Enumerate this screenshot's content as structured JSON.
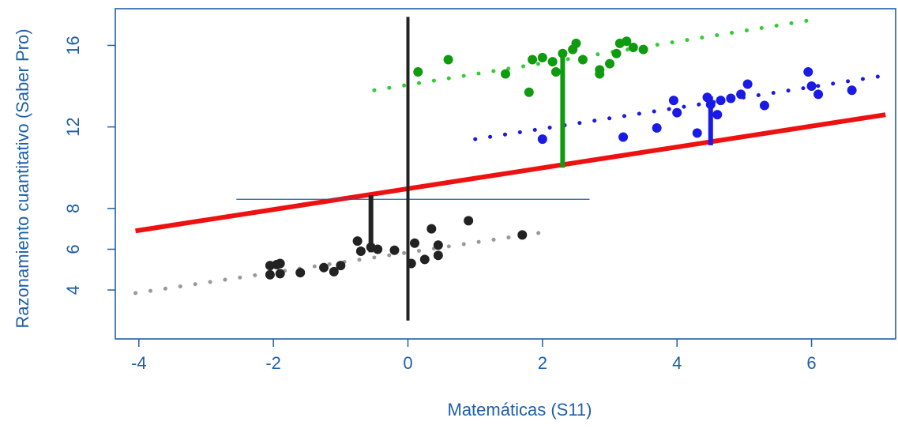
{
  "chart_data": {
    "type": "scatter",
    "title": "",
    "xlabel": "Matemáticas (S11)",
    "ylabel": "Razonamiento cuantitativo (Saber Pro)",
    "xlim": [
      -4.35,
      7.25
    ],
    "ylim": [
      1.6,
      17.8
    ],
    "x_ticks": [
      -4,
      -2,
      0,
      2,
      4,
      6
    ],
    "x_tick_labels": [
      "-4",
      "-2",
      "0",
      "2",
      "4",
      "6"
    ],
    "y_ticks": [
      4,
      6,
      8,
      12,
      16
    ],
    "y_tick_labels": [
      "4",
      "6",
      "8",
      "12",
      "16"
    ],
    "grid": false,
    "legend": "none",
    "colors": {
      "axis": "#1f5fa8",
      "overall_line": "#ee1111",
      "group_black": "#222222",
      "group_gray": "#999999",
      "group_green": "#0f9a0f",
      "group_green_line": "#33cc33",
      "group_blue": "#1a1ae6",
      "reference": "#1f5fa8"
    },
    "overall_line": {
      "x": [
        -4.05,
        7.1
      ],
      "y": [
        6.9,
        12.6
      ]
    },
    "reference_line": {
      "x": [
        -2.55,
        2.7
      ],
      "y": [
        8.45,
        8.45
      ]
    },
    "center_vertical": {
      "x": 0,
      "y": [
        2.5,
        17.4
      ]
    },
    "series": [
      {
        "group": "black",
        "color": "#222222",
        "trend_color": "#999999",
        "trend": {
          "x": [
            -4.05,
            2.05
          ],
          "y": [
            3.85,
            6.85
          ]
        },
        "deviation": {
          "x": -0.55,
          "y": [
            5.85,
            8.65
          ]
        },
        "points": [
          [
            -2.05,
            5.2
          ],
          [
            -1.95,
            5.25
          ],
          [
            -1.9,
            5.3
          ],
          [
            -2.05,
            4.75
          ],
          [
            -1.9,
            4.8
          ],
          [
            -1.6,
            4.85
          ],
          [
            -1.25,
            5.1
          ],
          [
            -1.1,
            4.9
          ],
          [
            -1.0,
            5.2
          ],
          [
            -0.75,
            6.4
          ],
          [
            -0.7,
            5.9
          ],
          [
            -0.55,
            6.1
          ],
          [
            -0.45,
            6.0
          ],
          [
            -0.2,
            5.95
          ],
          [
            0.05,
            5.3
          ],
          [
            0.1,
            6.3
          ],
          [
            0.25,
            5.5
          ],
          [
            0.35,
            7.0
          ],
          [
            0.45,
            6.2
          ],
          [
            0.45,
            5.7
          ],
          [
            0.9,
            7.4
          ],
          [
            1.7,
            6.7
          ]
        ]
      },
      {
        "group": "green",
        "color": "#0f9a0f",
        "trend_color": "#33cc33",
        "trend": {
          "x": [
            -0.5,
            6.1
          ],
          "y": [
            13.8,
            17.3
          ]
        },
        "deviation": {
          "x": 2.3,
          "y": [
            10.0,
            15.8
          ]
        },
        "points": [
          [
            0.15,
            14.7
          ],
          [
            0.6,
            15.3
          ],
          [
            1.45,
            14.6
          ],
          [
            1.8,
            13.7
          ],
          [
            1.85,
            15.3
          ],
          [
            2.0,
            15.4
          ],
          [
            2.15,
            15.2
          ],
          [
            2.2,
            14.7
          ],
          [
            2.3,
            15.6
          ],
          [
            2.45,
            15.8
          ],
          [
            2.5,
            16.1
          ],
          [
            2.6,
            15.3
          ],
          [
            2.85,
            14.8
          ],
          [
            2.85,
            14.6
          ],
          [
            3.0,
            15.1
          ],
          [
            3.1,
            15.6
          ],
          [
            3.15,
            16.1
          ],
          [
            3.25,
            16.2
          ],
          [
            3.35,
            15.9
          ],
          [
            3.5,
            15.8
          ]
        ]
      },
      {
        "group": "blue",
        "color": "#1a1ae6",
        "trend_color": "#1a1ae6",
        "trend": {
          "x": [
            1.0,
            7.05
          ],
          "y": [
            11.4,
            14.5
          ]
        },
        "deviation": {
          "x": 4.5,
          "y": [
            11.1,
            13.5
          ]
        },
        "points": [
          [
            2.0,
            11.4
          ],
          [
            3.2,
            11.5
          ],
          [
            3.7,
            11.95
          ],
          [
            3.95,
            13.3
          ],
          [
            4.0,
            12.7
          ],
          [
            4.3,
            11.7
          ],
          [
            4.45,
            13.45
          ],
          [
            4.5,
            13.1
          ],
          [
            4.6,
            12.6
          ],
          [
            4.65,
            13.3
          ],
          [
            4.8,
            13.4
          ],
          [
            4.95,
            13.6
          ],
          [
            5.05,
            14.1
          ],
          [
            5.3,
            13.05
          ],
          [
            5.95,
            14.7
          ],
          [
            6.0,
            14.0
          ],
          [
            6.1,
            13.6
          ],
          [
            6.6,
            13.8
          ]
        ]
      }
    ]
  }
}
